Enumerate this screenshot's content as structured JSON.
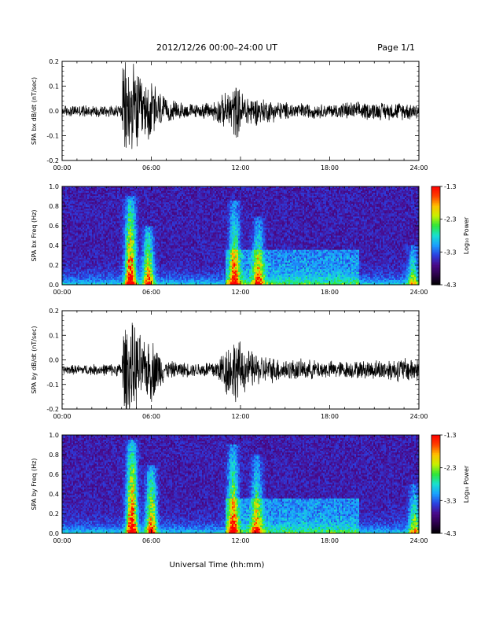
{
  "header": {
    "title": "2012/12/26  00:00–24:00 UT",
    "page": "Page 1/1"
  },
  "footer": {
    "xlabel": "Universal Time (hh:mm)"
  },
  "colorbar": {
    "label": "Log₁₀ Power",
    "ticks": [
      "-1.3",
      "-2.3",
      "-3.3",
      "-4.3"
    ]
  },
  "x_ticks": [
    "00:00",
    "06:00",
    "12:00",
    "18:00",
    "24:00"
  ],
  "colors": {
    "trace": "#000000",
    "spec_background": "#240036",
    "palette": [
      "#000000",
      "#2a0048",
      "#4a0a8a",
      "#2b3fe0",
      "#1aa0ff",
      "#19e0d0",
      "#2fe63a",
      "#c8f000",
      "#ffc000",
      "#ff4000",
      "#ff0000"
    ]
  },
  "chart_data": [
    {
      "type": "line",
      "ylabel": "SPA bx dB/dt (nT/sec)",
      "xlim": [
        0,
        24
      ],
      "ylim": [
        -0.2,
        0.2
      ],
      "y_ticks": [
        "0.2",
        "0.1",
        "0.0",
        "-0.1",
        "-0.2"
      ],
      "baseline": 0.0,
      "envelope": [
        {
          "x": 0.0,
          "amp": 0.025
        },
        {
          "x": 4.0,
          "amp": 0.03
        },
        {
          "x": 4.1,
          "amp": 0.22
        },
        {
          "x": 5.0,
          "amp": 0.2
        },
        {
          "x": 5.5,
          "amp": 0.12
        },
        {
          "x": 6.0,
          "amp": 0.15
        },
        {
          "x": 7.0,
          "amp": 0.05
        },
        {
          "x": 9.0,
          "amp": 0.03
        },
        {
          "x": 10.0,
          "amp": 0.04
        },
        {
          "x": 11.0,
          "amp": 0.08
        },
        {
          "x": 11.7,
          "amp": 0.13
        },
        {
          "x": 12.0,
          "amp": 0.09
        },
        {
          "x": 13.2,
          "amp": 0.06
        },
        {
          "x": 15.0,
          "amp": 0.04
        },
        {
          "x": 18.0,
          "amp": 0.03
        },
        {
          "x": 19.0,
          "amp": 0.04
        },
        {
          "x": 24.0,
          "amp": 0.04
        }
      ]
    },
    {
      "type": "heatmap",
      "ylabel": "SPA bx Freq (Hz)",
      "xlim": [
        0,
        24
      ],
      "ylim": [
        0,
        1.0
      ],
      "y_ticks": [
        "1.0",
        "0.8",
        "0.6",
        "0.4",
        "0.2",
        "0.0"
      ],
      "zlim": [
        -4.3,
        -1.3
      ],
      "zlabel": "Log₁₀ Power",
      "hotspots": [
        {
          "t": 4.6,
          "f_max": 0.9,
          "strength": 1.0
        },
        {
          "t": 5.8,
          "f_max": 0.6,
          "strength": 0.8
        },
        {
          "t": 11.6,
          "f_max": 0.85,
          "strength": 0.7
        },
        {
          "t": 13.2,
          "f_max": 0.7,
          "strength": 0.6
        },
        {
          "t": 23.6,
          "f_max": 0.4,
          "strength": 0.5
        }
      ]
    },
    {
      "type": "line",
      "ylabel": "SPA by dB/dt (nT/sec)",
      "xlim": [
        0,
        24
      ],
      "ylim": [
        -0.2,
        0.2
      ],
      "y_ticks": [
        "0.2",
        "0.1",
        "0.0",
        "-0.1",
        "-0.2"
      ],
      "baseline": -0.04,
      "envelope": [
        {
          "x": 0.0,
          "amp": 0.02
        },
        {
          "x": 4.0,
          "amp": 0.03
        },
        {
          "x": 4.1,
          "amp": 0.22
        },
        {
          "x": 5.0,
          "amp": 0.2
        },
        {
          "x": 5.5,
          "amp": 0.12
        },
        {
          "x": 6.0,
          "amp": 0.15
        },
        {
          "x": 7.0,
          "amp": 0.04
        },
        {
          "x": 9.0,
          "amp": 0.03
        },
        {
          "x": 10.5,
          "amp": 0.05
        },
        {
          "x": 11.0,
          "amp": 0.12
        },
        {
          "x": 11.7,
          "amp": 0.15
        },
        {
          "x": 12.3,
          "amp": 0.1
        },
        {
          "x": 13.2,
          "amp": 0.07
        },
        {
          "x": 15.0,
          "amp": 0.05
        },
        {
          "x": 18.0,
          "amp": 0.04
        },
        {
          "x": 20.0,
          "amp": 0.04
        },
        {
          "x": 23.8,
          "amp": 0.06
        },
        {
          "x": 24.0,
          "amp": 0.04
        }
      ]
    },
    {
      "type": "heatmap",
      "ylabel": "SPA by Freq (Hz)",
      "xlim": [
        0,
        24
      ],
      "ylim": [
        0,
        1.0
      ],
      "y_ticks": [
        "1.0",
        "0.8",
        "0.6",
        "0.4",
        "0.2",
        "0.0"
      ],
      "zlim": [
        -4.3,
        -1.3
      ],
      "zlabel": "Log₁₀ Power",
      "hotspots": [
        {
          "t": 4.7,
          "f_max": 0.95,
          "strength": 1.0
        },
        {
          "t": 6.0,
          "f_max": 0.7,
          "strength": 0.8
        },
        {
          "t": 11.5,
          "f_max": 0.9,
          "strength": 0.75
        },
        {
          "t": 13.1,
          "f_max": 0.8,
          "strength": 0.6
        },
        {
          "t": 23.7,
          "f_max": 0.5,
          "strength": 0.55
        }
      ]
    }
  ]
}
